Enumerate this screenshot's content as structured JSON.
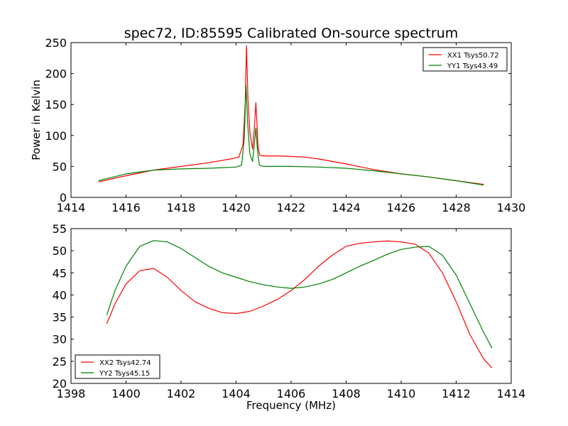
{
  "title": "spec72, ID:85595 Calibrated On-source spectrum",
  "chart_data": [
    {
      "type": "line",
      "ylabel": "Power in Kelvin",
      "xlabel": "",
      "xlim": [
        1414,
        1430
      ],
      "ylim": [
        0,
        250
      ],
      "xticks": [
        "1414",
        "1416",
        "1418",
        "1420",
        "1422",
        "1424",
        "1426",
        "1428",
        "1430"
      ],
      "yticks": [
        "0",
        "50",
        "100",
        "150",
        "200",
        "250"
      ],
      "legend_position": "top-right",
      "series": [
        {
          "name": "XX1 Tsys50.72",
          "color": "#ff0000",
          "x": [
            1415.0,
            1416.0,
            1417.0,
            1418.0,
            1419.0,
            1419.8,
            1420.1,
            1420.25,
            1420.33,
            1420.38,
            1420.43,
            1420.5,
            1420.6,
            1420.66,
            1420.72,
            1420.76,
            1420.8,
            1420.86,
            1421.0,
            1421.5,
            1422.0,
            1422.5,
            1423.0,
            1424.0,
            1425.0,
            1426.0,
            1427.0,
            1428.0,
            1429.0
          ],
          "y": [
            25,
            35,
            44,
            50,
            56,
            62,
            65,
            85,
            150,
            245,
            160,
            105,
            78,
            110,
            153,
            120,
            80,
            68,
            67,
            67,
            66,
            65,
            62,
            54,
            45,
            38,
            33,
            27,
            21
          ]
        },
        {
          "name": "YY1 Tsys43.49",
          "color": "#008000",
          "x": [
            1415.0,
            1416.0,
            1417.0,
            1418.0,
            1419.0,
            1420.0,
            1420.2,
            1420.3,
            1420.36,
            1420.42,
            1420.5,
            1420.6,
            1420.66,
            1420.72,
            1420.78,
            1420.85,
            1421.0,
            1422.0,
            1423.0,
            1424.0,
            1425.0,
            1426.0,
            1427.0,
            1428.0,
            1429.0
          ],
          "y": [
            27,
            38,
            44,
            46,
            47,
            49,
            52,
            95,
            182,
            120,
            70,
            58,
            85,
            112,
            75,
            52,
            50,
            50,
            49,
            47,
            43,
            38,
            33,
            27,
            20
          ]
        }
      ]
    },
    {
      "type": "line",
      "ylabel": "",
      "xlabel": "Frequency (MHz)",
      "xlim": [
        1398,
        1414
      ],
      "ylim": [
        20,
        55
      ],
      "xticks": [
        "1398",
        "1400",
        "1402",
        "1404",
        "1406",
        "1408",
        "1410",
        "1412",
        "1414"
      ],
      "yticks": [
        "20",
        "25",
        "30",
        "35",
        "40",
        "45",
        "50",
        "55"
      ],
      "legend_position": "bottom-left",
      "series": [
        {
          "name": "XX2 Tsys42.74",
          "color": "#ff0000",
          "x": [
            1399.3,
            1399.6,
            1400.0,
            1400.5,
            1401.0,
            1401.5,
            1402.0,
            1402.5,
            1403.0,
            1403.5,
            1404.0,
            1404.5,
            1405.0,
            1405.5,
            1406.0,
            1406.5,
            1407.0,
            1407.5,
            1408.0,
            1408.5,
            1409.0,
            1409.5,
            1410.0,
            1410.5,
            1411.0,
            1411.5,
            1412.0,
            1412.5,
            1413.0,
            1413.3
          ],
          "y": [
            33.5,
            38,
            42.5,
            45.5,
            46,
            44,
            41,
            38.5,
            37,
            36,
            35.8,
            36.3,
            37.5,
            39,
            41,
            43.5,
            46.5,
            49,
            51,
            51.7,
            52,
            52.2,
            52,
            51.5,
            49.5,
            45,
            38.5,
            31,
            25.5,
            23.5
          ]
        },
        {
          "name": "YY2 Tsys45.15",
          "color": "#008000",
          "x": [
            1399.3,
            1399.6,
            1400.0,
            1400.5,
            1401.0,
            1401.5,
            1402.0,
            1402.5,
            1403.0,
            1403.5,
            1404.0,
            1404.5,
            1405.0,
            1405.5,
            1406.0,
            1406.5,
            1407.0,
            1407.5,
            1408.0,
            1408.5,
            1409.0,
            1409.5,
            1410.0,
            1410.5,
            1411.0,
            1411.5,
            1412.0,
            1412.5,
            1413.0,
            1413.3
          ],
          "y": [
            35.5,
            41,
            46.5,
            51,
            52.3,
            52,
            50.5,
            48.5,
            46.5,
            45,
            44,
            43,
            42.3,
            41.8,
            41.5,
            41.8,
            42.5,
            43.5,
            45,
            46.5,
            47.8,
            49.2,
            50.3,
            50.8,
            51,
            49,
            44.5,
            38,
            31.5,
            28
          ]
        }
      ]
    }
  ]
}
